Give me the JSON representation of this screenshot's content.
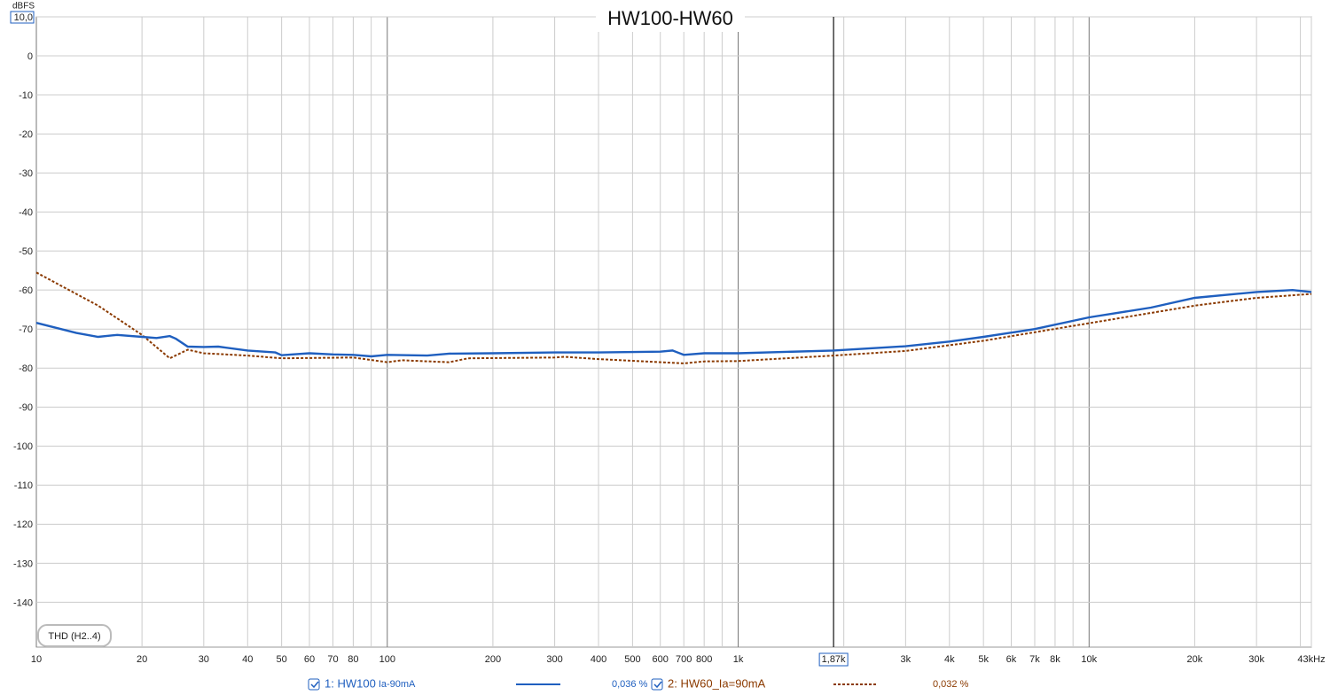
{
  "chart_data": {
    "type": "line",
    "title": "HW100-HW60",
    "y_label": "dBFS",
    "log_x": true,
    "grid": true,
    "xlim": [
      10,
      43000
    ],
    "ylim": [
      -151.5,
      10
    ],
    "xticks": [
      10,
      20,
      30,
      40,
      50,
      60,
      70,
      80,
      100,
      200,
      300,
      400,
      500,
      600,
      700,
      800,
      {
        "value": 1000,
        "label": "1k"
      },
      {
        "value": 3000,
        "label": "3k"
      },
      {
        "value": 4000,
        "label": "4k"
      },
      {
        "value": 5000,
        "label": "5k"
      },
      {
        "value": 6000,
        "label": "6k"
      },
      {
        "value": 7000,
        "label": "7k"
      },
      {
        "value": 8000,
        "label": "8k"
      },
      {
        "value": 10000,
        "label": "10k"
      },
      {
        "value": 20000,
        "label": "20k"
      },
      {
        "value": 30000,
        "label": "30k"
      },
      {
        "value": 43000,
        "label": "43kHz"
      }
    ],
    "xgrid_minor": [
      90,
      900,
      2000,
      9000,
      40000
    ],
    "yticks": [
      {
        "value": 10,
        "label": "10,0"
      },
      0,
      -10,
      -20,
      -30,
      -40,
      -50,
      -60,
      -70,
      -80,
      -90,
      -100,
      -110,
      -120,
      -130,
      -140
    ],
    "cursor": {
      "value": 1870,
      "label": "1,87k"
    },
    "annotation": "THD (H2..4)",
    "series": [
      {
        "name": "1: HW100",
        "sub_name": "Ia-90mA",
        "reading": "0,036 %",
        "color": "#1f5fbf",
        "dash": false,
        "x": [
          10,
          13,
          15,
          17,
          20,
          22,
          24,
          25,
          27,
          30,
          33,
          40,
          48,
          50,
          60,
          70,
          80,
          90,
          100,
          130,
          150,
          200,
          300,
          400,
          600,
          650,
          700,
          800,
          1000,
          1870,
          3000,
          4000,
          5000,
          7000,
          10000,
          15000,
          20000,
          30000,
          38000,
          43000
        ],
        "values": [
          -68.4,
          -71,
          -72,
          -71.5,
          -72,
          -72.3,
          -71.8,
          -72.5,
          -74.5,
          -74.6,
          -74.5,
          -75.5,
          -76,
          -76.7,
          -76.2,
          -76.5,
          -76.6,
          -77,
          -76.6,
          -76.8,
          -76.3,
          -76.2,
          -76,
          -76,
          -75.8,
          -75.5,
          -76.6,
          -76.2,
          -76.2,
          -75.5,
          -74.4,
          -73.2,
          -72,
          -70,
          -67,
          -64.5,
          -62,
          -60.5,
          -60,
          -60.5
        ]
      },
      {
        "name": "2: HW60_Ia=90mA",
        "reading": "0,032 %",
        "color": "#8b3a00",
        "dash": true,
        "x": [
          10,
          15,
          20,
          24,
          27,
          30,
          40,
          50,
          80,
          100,
          110,
          150,
          170,
          300,
          320,
          400,
          700,
          800,
          1000,
          1870,
          3000,
          5000,
          10000,
          20000,
          30000,
          43000
        ],
        "values": [
          -55.5,
          -64,
          -71.5,
          -77.5,
          -75.3,
          -76.2,
          -76.8,
          -77.5,
          -77.3,
          -78.5,
          -78,
          -78.5,
          -77.5,
          -77.3,
          -77.1,
          -77.7,
          -78.8,
          -78.3,
          -78.2,
          -76.8,
          -75.6,
          -73,
          -68.5,
          -64,
          -62,
          -61
        ]
      }
    ]
  }
}
